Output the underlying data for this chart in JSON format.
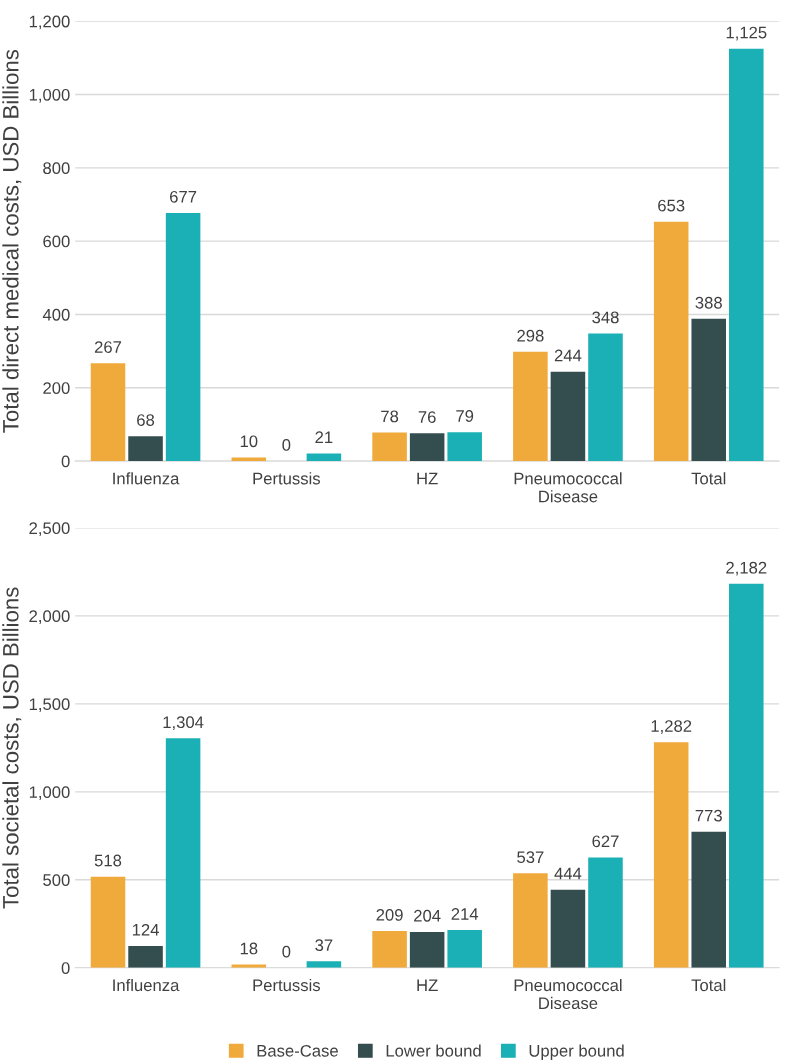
{
  "chart_data": [
    {
      "type": "bar",
      "ylabel": "Total direct medical costs, USD Billions",
      "categories": [
        "Influenza",
        "Pertussis",
        "HZ",
        "Pneumococcal\nDisease",
        "Total"
      ],
      "series": [
        {
          "color": "#f0a93b",
          "values": [
            267,
            10,
            78,
            298,
            653
          ],
          "value_labels": [
            "267",
            "10",
            "78",
            "298",
            "653"
          ]
        },
        {
          "color": "#344d4f",
          "values": [
            68,
            0,
            76,
            244,
            388
          ],
          "value_labels": [
            "68",
            "0",
            "76",
            "244",
            "388"
          ]
        },
        {
          "color": "#1bb0b5",
          "values": [
            677,
            21,
            79,
            348,
            1125
          ],
          "value_labels": [
            "677",
            "21",
            "79",
            "348",
            "1,125"
          ]
        }
      ],
      "ylim": [
        0,
        1200
      ],
      "yticks": [
        0,
        200,
        400,
        600,
        800,
        {
          "value": 1000,
          "label": "1,000"
        },
        {
          "value": 1200,
          "label": "1,200"
        }
      ],
      "grid": "y"
    },
    {
      "type": "bar",
      "ylabel": "Total societal costs, USD Billions",
      "categories": [
        "Influenza",
        "Pertussis",
        "HZ",
        "Pneumococcal\nDisease",
        "Total"
      ],
      "series": [
        {
          "name": "Base-Case",
          "color": "#f0a93b",
          "values": [
            518,
            18,
            209,
            537,
            1282
          ],
          "value_labels": [
            "518",
            "18",
            "209",
            "537",
            "1,282"
          ]
        },
        {
          "name": "Lower bound",
          "color": "#344d4f",
          "values": [
            124,
            0,
            204,
            444,
            773
          ],
          "value_labels": [
            "124",
            "0",
            "204",
            "444",
            "773"
          ]
        },
        {
          "name": "Upper bound",
          "color": "#1bb0b5",
          "values": [
            1304,
            37,
            214,
            627,
            2182
          ],
          "value_labels": [
            "1,304",
            "37",
            "214",
            "627",
            "2,182"
          ]
        }
      ],
      "ylim": [
        0,
        2500
      ],
      "yticks": [
        0,
        500,
        {
          "value": 1000,
          "label": "1,000"
        },
        {
          "value": 1500,
          "label": "1,500"
        },
        {
          "value": 2000,
          "label": "2,000"
        },
        {
          "value": 2500,
          "label": "2,500"
        }
      ],
      "grid": "y",
      "legend": "bottom"
    }
  ]
}
